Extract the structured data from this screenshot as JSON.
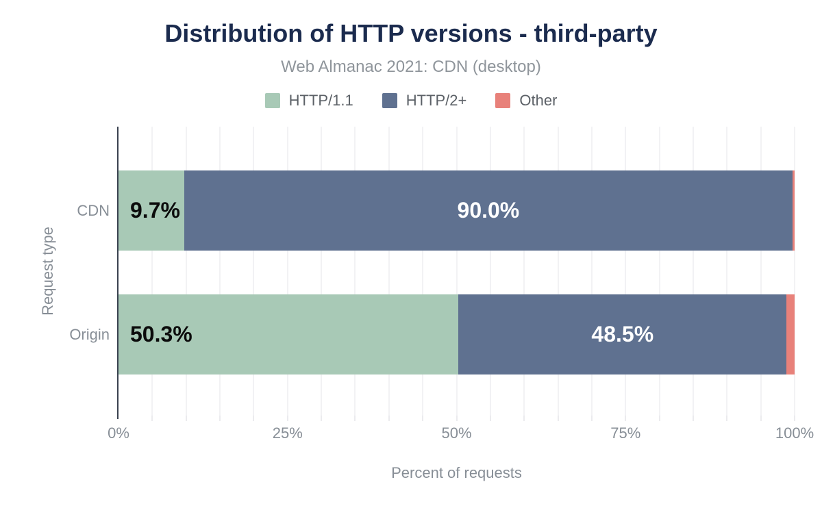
{
  "chart_data": {
    "type": "bar",
    "orientation": "horizontal",
    "stacked": true,
    "title": "Distribution of HTTP versions - third-party",
    "subtitle": "Web Almanac 2021: CDN (desktop)",
    "xlabel": "Percent of requests",
    "ylabel": "Request type",
    "categories": [
      "CDN",
      "Origin"
    ],
    "series": [
      {
        "name": "HTTP/1.1",
        "color": "#a8c9b6",
        "values": [
          9.7,
          50.3
        ],
        "data_labels": [
          "9.7%",
          "50.3%"
        ]
      },
      {
        "name": "HTTP/2+",
        "color": "#5f7190",
        "values": [
          90.0,
          48.5
        ],
        "data_labels": [
          "90.0%",
          "48.5%"
        ]
      },
      {
        "name": "Other",
        "color": "#e8817a",
        "values": [
          0.3,
          1.2
        ],
        "data_labels": [
          "",
          ""
        ]
      }
    ],
    "xlim": [
      0,
      100
    ],
    "x_ticks": [
      {
        "label": "0%",
        "value": 0
      },
      {
        "label": "25%",
        "value": 25
      },
      {
        "label": "50%",
        "value": 50
      },
      {
        "label": "75%",
        "value": 75
      },
      {
        "label": "100%",
        "value": 100
      }
    ],
    "grid": {
      "show": true,
      "interval_percent": 5,
      "color": "#f2f2f4"
    },
    "legend_position": "top",
    "colors": {
      "title": "#1b2b4e",
      "subtitle_text": "#8f959b",
      "axis_text": "#878e96",
      "legend_text": "#5c6167",
      "axis_line": "#39414f",
      "label_on_light": "#0b0b0b",
      "label_on_dark": "#ffffff",
      "background": "#ffffff"
    }
  }
}
